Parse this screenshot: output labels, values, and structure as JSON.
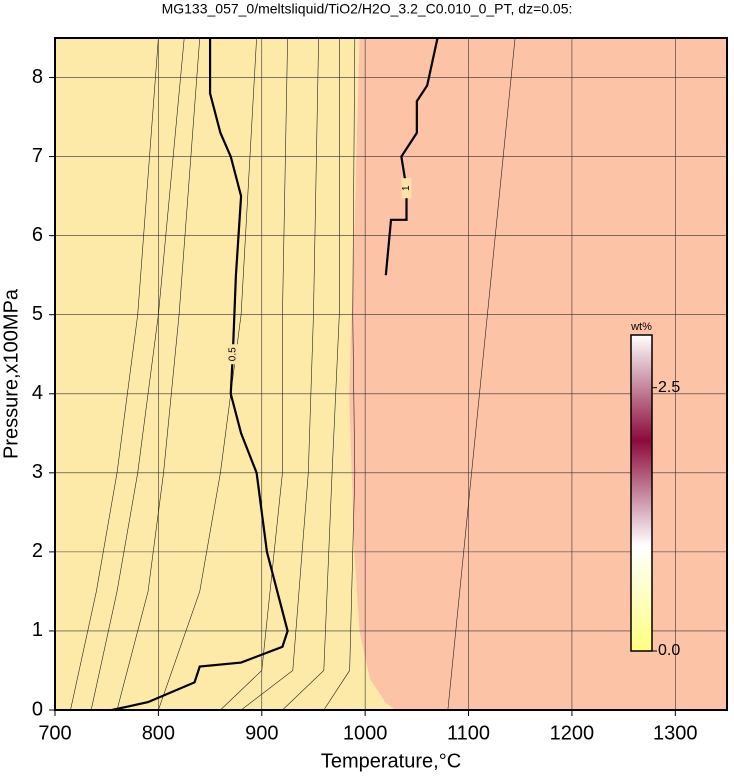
{
  "chart_data": {
    "type": "contour",
    "title": "MG133_057_0/meltsliquid/TiO2/H2O_3.2_C0.010_0_PT, dz=0.05:",
    "xlabel": "Temperature,°C",
    "ylabel": "Pressure,x100MPa",
    "xlim": [
      700,
      1350
    ],
    "ylim": [
      0,
      8.5
    ],
    "xticks": [
      700,
      800,
      900,
      1000,
      1100,
      1200,
      1300
    ],
    "yticks": [
      0,
      1,
      2,
      3,
      4,
      5,
      6,
      7,
      8
    ],
    "grid": true,
    "regions": [
      {
        "color": "#fdeaa8",
        "x": [
          700,
          995,
          990,
          985,
          990,
          995,
          1005,
          1020,
          1030,
          700
        ],
        "y": [
          8.5,
          8.5,
          6,
          4,
          2,
          1,
          0.4,
          0.1,
          0,
          0
        ]
      },
      {
        "color": "#fdc3a6",
        "x": [
          995,
          1350,
          1350,
          1030,
          1020,
          1005,
          995,
          990,
          985,
          990
        ],
        "y": [
          8.5,
          8.5,
          0,
          0,
          0.1,
          0.4,
          1,
          2,
          4,
          6
        ]
      }
    ],
    "contours": [
      {
        "level": 0.5,
        "x": [
          850,
          850,
          860,
          870,
          880,
          875,
          872,
          870,
          880,
          895,
          905,
          915,
          925,
          920,
          880,
          840,
          835,
          790,
          755
        ],
        "y": [
          8.5,
          7.8,
          7.3,
          7.0,
          6.5,
          5.5,
          4.5,
          4.0,
          3.5,
          3.0,
          2.0,
          1.5,
          1.0,
          0.8,
          0.6,
          0.55,
          0.35,
          0.1,
          0
        ]
      },
      {
        "level": 1,
        "x": [
          1020,
          1025,
          1040,
          1040,
          1035,
          1050,
          1050,
          1060,
          1065,
          1070
        ],
        "y": [
          5.5,
          6.2,
          6.2,
          6.6,
          7.0,
          7.3,
          7.7,
          7.9,
          8.2,
          8.5
        ]
      }
    ],
    "thin_contours": [
      {
        "x": [
          1080,
          1145
        ],
        "y": [
          0,
          8.5
        ]
      },
      {
        "x": [
          715,
          740,
          760,
          780,
          800
        ],
        "y": [
          0,
          1.5,
          3,
          5,
          8.5
        ]
      },
      {
        "x": [
          735,
          760,
          780,
          800,
          825
        ],
        "y": [
          0,
          1.5,
          3,
          5,
          8.5
        ]
      },
      {
        "x": [
          760,
          790,
          805,
          820,
          840
        ],
        "y": [
          0,
          1.5,
          3,
          5,
          8.5
        ]
      },
      {
        "x": [
          800,
          840,
          860,
          880,
          895
        ],
        "y": [
          0,
          1.5,
          3,
          5,
          8.5
        ]
      },
      {
        "x": [
          860,
          900,
          920,
          920,
          925
        ],
        "y": [
          0,
          0.5,
          3,
          5,
          8.5
        ]
      },
      {
        "x": [
          880,
          930,
          945,
          950,
          955
        ],
        "y": [
          0,
          0.5,
          3,
          5,
          8.5
        ]
      },
      {
        "x": [
          920,
          960,
          968,
          975,
          975
        ],
        "y": [
          0,
          0.5,
          3,
          5,
          8.5
        ]
      },
      {
        "x": [
          960,
          985,
          990,
          988,
          990
        ],
        "y": [
          0,
          0.5,
          3,
          5,
          8.5
        ]
      }
    ],
    "colorbar": {
      "label": "wt%",
      "clim": [
        0,
        3
      ],
      "ticks": [
        {
          "value": 0,
          "label": "0.0"
        },
        {
          "value": 2.5,
          "label": "2.5"
        }
      ],
      "colors": [
        "#ffff80",
        "#ffffff",
        "#8b0a3a",
        "#ffffff"
      ]
    }
  }
}
